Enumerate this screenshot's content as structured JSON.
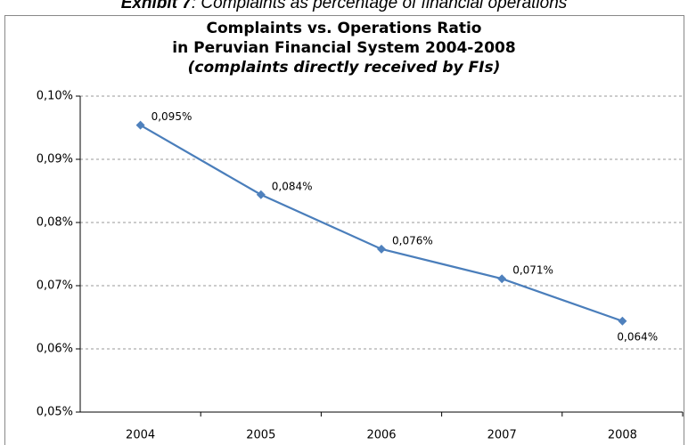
{
  "caption": {
    "label": "Exhibit 7",
    "text": ": Complaints as percentage of financial operations"
  },
  "chart_data": {
    "type": "line",
    "title": [
      "Complaints vs. Operations Ratio",
      "in Peruvian Financial System 2004-2008"
    ],
    "subtitle": "(complaints directly received by FIs)",
    "categories": [
      "2004",
      "2005",
      "2006",
      "2007",
      "2008"
    ],
    "series": [
      {
        "name": "Complaints vs. Operations Ratio",
        "color": "#4a7ebb",
        "values": [
          0.0954,
          0.0844,
          0.0758,
          0.0711,
          0.0644
        ],
        "value_labels": [
          "0,095%",
          "0,084%",
          "0,076%",
          "0,071%",
          "0,064%"
        ]
      }
    ],
    "ylim": [
      0.05,
      0.1
    ],
    "yticks": [
      {
        "value": 0.05,
        "label": "0,05%"
      },
      {
        "value": 0.06,
        "label": "0,06%"
      },
      {
        "value": 0.07,
        "label": "0,07%"
      },
      {
        "value": 0.08,
        "label": "0,08%"
      },
      {
        "value": 0.09,
        "label": "0,09%"
      },
      {
        "value": 0.1,
        "label": "0,10%"
      }
    ],
    "grid": true
  }
}
